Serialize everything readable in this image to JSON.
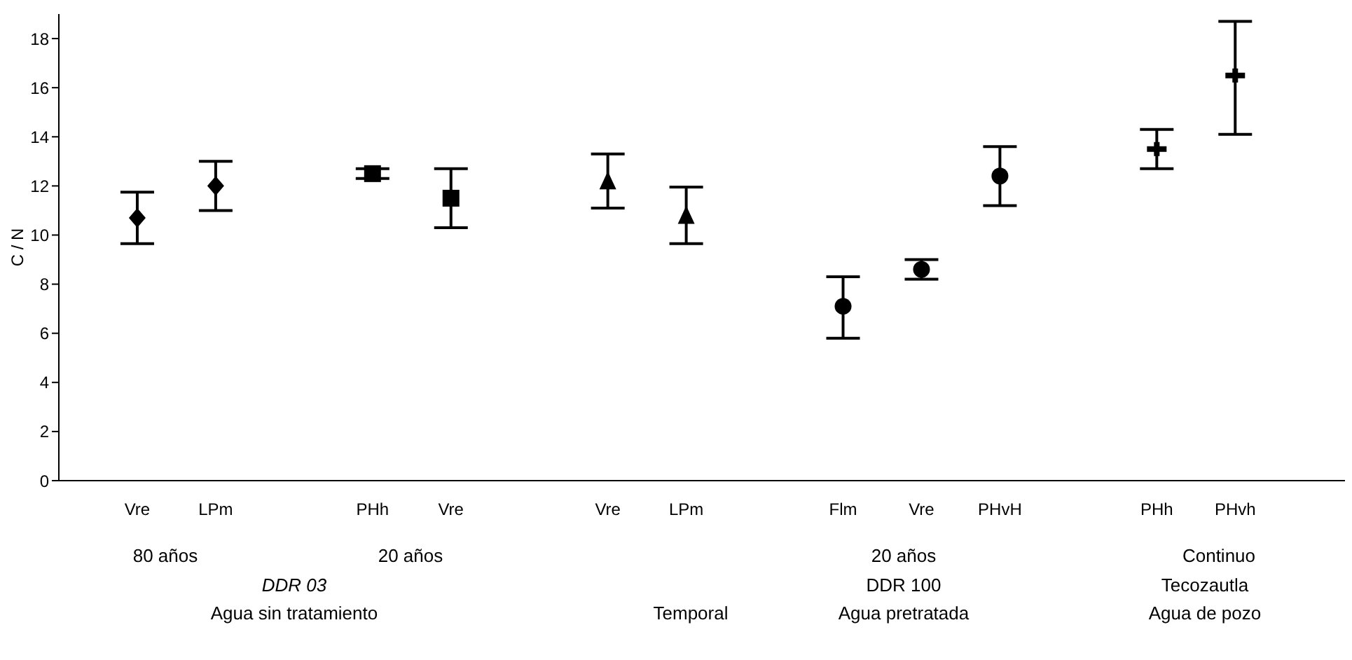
{
  "chart_data": {
    "type": "scatter",
    "ylabel": "C / N",
    "categories": [
      "Vre",
      "LPm",
      null,
      "PHh",
      "Vre",
      null,
      "Vre",
      "LPm",
      null,
      "Flm",
      "Vre",
      "PHvH",
      null,
      "PHh",
      "PHvh"
    ],
    "series": [
      {
        "color": "#000000",
        "marker": "diamond",
        "values": [
          10.7,
          12.0,
          null,
          null,
          null,
          null,
          null,
          null,
          null,
          null,
          null,
          null,
          null,
          null,
          null
        ],
        "errors": [
          1.05,
          1.0,
          null,
          null,
          null,
          null,
          null,
          null,
          null,
          null,
          null,
          null,
          null,
          null,
          null
        ]
      },
      {
        "color": "#000000",
        "marker": "square",
        "values": [
          null,
          null,
          null,
          12.5,
          11.5,
          null,
          null,
          null,
          null,
          null,
          null,
          null,
          null,
          null,
          null
        ],
        "errors": [
          null,
          null,
          null,
          0.2,
          1.2,
          null,
          null,
          null,
          null,
          null,
          null,
          null,
          null,
          null,
          null
        ]
      },
      {
        "color": "#000000",
        "marker": "triangle",
        "values": [
          null,
          null,
          null,
          null,
          null,
          null,
          12.2,
          10.8,
          null,
          null,
          null,
          null,
          null,
          null,
          null
        ],
        "errors": [
          null,
          null,
          null,
          null,
          null,
          null,
          1.1,
          1.15,
          null,
          null,
          null,
          null,
          null,
          null,
          null
        ]
      },
      {
        "color": "#000000",
        "marker": "circle",
        "values": [
          null,
          null,
          null,
          null,
          null,
          null,
          null,
          null,
          null,
          7.1,
          8.6,
          12.4,
          null,
          null,
          null
        ],
        "errors": [
          null,
          null,
          null,
          null,
          null,
          null,
          null,
          null,
          null,
          [
            5.8,
            8.3
          ],
          0.4,
          1.2,
          null,
          null,
          null
        ]
      },
      {
        "color": "#000000",
        "marker": "cross",
        "values": [
          null,
          null,
          null,
          null,
          null,
          null,
          null,
          null,
          null,
          null,
          null,
          null,
          null,
          13.5,
          16.5
        ],
        "errors": [
          null,
          null,
          null,
          null,
          null,
          null,
          null,
          null,
          null,
          null,
          null,
          null,
          null,
          0.8,
          [
            14.1,
            18.7
          ]
        ]
      }
    ],
    "ylim": [
      0,
      19
    ],
    "yticks": [
      0,
      2,
      4,
      6,
      8,
      10,
      12,
      14,
      16,
      18
    ],
    "grid": false,
    "legend": false,
    "annotations": [
      "80 años",
      "20 años",
      "DDR 03",
      "Agua sin tratamiento",
      "Temporal",
      "20 años",
      "DDR 100",
      "Agua pretratada",
      "Continuo",
      "Tecozautla",
      "Agua de pozo"
    ]
  }
}
